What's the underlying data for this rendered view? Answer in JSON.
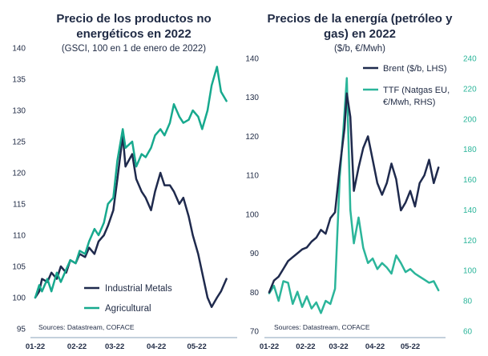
{
  "chart_data": [
    {
      "type": "line",
      "title": "Precio de los productos no energéticos en 2022",
      "subtitle": "(GSCI, 100 en 1 de enero de 2022)",
      "x_ticks": [
        "01-22",
        "02-22",
        "03-22",
        "04-22",
        "05-22"
      ],
      "ylim": [
        95,
        140
      ],
      "y_ticks": [
        95,
        100,
        105,
        110,
        115,
        120,
        125,
        130,
        135,
        140
      ],
      "legend_placement": "bottom-right",
      "source": "Sources: Datastream, COFACE",
      "colors": {
        "Industrial Metals": "#1f2a4d",
        "Agricultural": "#17a98e"
      },
      "series": [
        {
          "name": "Industrial Metals",
          "x": [
            "2022-01-01",
            "2022-01-04",
            "2022-01-06",
            "2022-01-10",
            "2022-01-13",
            "2022-01-17",
            "2022-01-20",
            "2022-01-24",
            "2022-01-27",
            "2022-01-31",
            "2022-02-03",
            "2022-02-07",
            "2022-02-10",
            "2022-02-14",
            "2022-02-17",
            "2022-02-21",
            "2022-02-24",
            "2022-02-28",
            "2022-03-03",
            "2022-03-07",
            "2022-03-09",
            "2022-03-14",
            "2022-03-17",
            "2022-03-21",
            "2022-03-24",
            "2022-03-28",
            "2022-03-31",
            "2022-04-04",
            "2022-04-07",
            "2022-04-11",
            "2022-04-14",
            "2022-04-18",
            "2022-04-21",
            "2022-04-25",
            "2022-04-28",
            "2022-05-02",
            "2022-05-05",
            "2022-05-09",
            "2022-05-12",
            "2022-05-16",
            "2022-05-19",
            "2022-05-23"
          ],
          "values": [
            100,
            101,
            103,
            102.5,
            104,
            103,
            105,
            104,
            106,
            105.5,
            107,
            106.5,
            108,
            107,
            109,
            110,
            111.5,
            114,
            119,
            126,
            121,
            123,
            119,
            117,
            116,
            114,
            117,
            120,
            118,
            118,
            117,
            115,
            116,
            113,
            110,
            107,
            104,
            100,
            98.5,
            100,
            101,
            103
          ]
        },
        {
          "name": "Agricultural",
          "x": [
            "2022-01-01",
            "2022-01-04",
            "2022-01-06",
            "2022-01-10",
            "2022-01-13",
            "2022-01-17",
            "2022-01-20",
            "2022-01-24",
            "2022-01-27",
            "2022-01-31",
            "2022-02-03",
            "2022-02-07",
            "2022-02-10",
            "2022-02-14",
            "2022-02-17",
            "2022-02-21",
            "2022-02-24",
            "2022-02-28",
            "2022-03-03",
            "2022-03-07",
            "2022-03-09",
            "2022-03-14",
            "2022-03-17",
            "2022-03-21",
            "2022-03-24",
            "2022-03-28",
            "2022-03-31",
            "2022-04-04",
            "2022-04-07",
            "2022-04-11",
            "2022-04-14",
            "2022-04-18",
            "2022-04-21",
            "2022-04-25",
            "2022-04-28",
            "2022-05-02",
            "2022-05-05",
            "2022-05-09",
            "2022-05-12",
            "2022-05-16",
            "2022-05-19",
            "2022-05-23"
          ],
          "values": [
            100,
            102,
            101,
            103,
            101,
            104,
            102.5,
            104.5,
            106,
            105.5,
            107.5,
            107,
            109,
            111,
            110,
            112,
            115,
            116,
            122,
            127,
            124,
            125,
            121,
            123,
            122.5,
            124,
            126,
            127,
            126,
            128,
            131,
            129,
            128,
            128.5,
            130,
            129,
            127,
            130,
            134,
            137,
            133,
            131.5
          ]
        }
      ]
    },
    {
      "type": "line",
      "title": "Precios de la energía (petróleo y gas) en 2022",
      "subtitle": "($/b, €/Mwh)",
      "x_ticks": [
        "01-22",
        "02-22",
        "03-22",
        "04-22",
        "05-22"
      ],
      "ylim_left": [
        70,
        140
      ],
      "y_ticks_left": [
        70,
        80,
        90,
        100,
        110,
        120,
        130,
        140
      ],
      "ylim_right": [
        60,
        240
      ],
      "y_ticks_right": [
        60,
        80,
        100,
        120,
        140,
        160,
        180,
        200,
        220,
        240
      ],
      "legend_placement": "top-right",
      "source": "Sources: Datastream, COFACE",
      "colors": {
        "Brent ($/b, LHS)": "#1f2a4d",
        "TTF (Natgas EU, €/Mwh, RHS)": "#2bb59a"
      },
      "series": [
        {
          "name": "Brent ($/b, LHS)",
          "axis": "left",
          "x": [
            "2022-01-01",
            "2022-01-05",
            "2022-01-09",
            "2022-01-13",
            "2022-01-17",
            "2022-01-21",
            "2022-01-25",
            "2022-01-29",
            "2022-02-02",
            "2022-02-06",
            "2022-02-10",
            "2022-02-14",
            "2022-02-18",
            "2022-02-22",
            "2022-02-26",
            "2022-03-02",
            "2022-03-06",
            "2022-03-08",
            "2022-03-11",
            "2022-03-14",
            "2022-03-18",
            "2022-03-22",
            "2022-03-26",
            "2022-03-30",
            "2022-04-03",
            "2022-04-07",
            "2022-04-11",
            "2022-04-15",
            "2022-04-19",
            "2022-04-23",
            "2022-04-27",
            "2022-05-01",
            "2022-05-05",
            "2022-05-09",
            "2022-05-13",
            "2022-05-17",
            "2022-05-21",
            "2022-05-25"
          ],
          "values": [
            80,
            83,
            84,
            86,
            88,
            89,
            90,
            91,
            91.5,
            93,
            94,
            96,
            95,
            99,
            100.5,
            112,
            122,
            131,
            125,
            106,
            112,
            117,
            120,
            114,
            108,
            105,
            108,
            113,
            109,
            101,
            103,
            106,
            102,
            108,
            110,
            114,
            108,
            112
          ]
        },
        {
          "name": "TTF (Natgas EU, €/Mwh, RHS)",
          "axis": "right",
          "x": [
            "2022-01-01",
            "2022-01-05",
            "2022-01-09",
            "2022-01-13",
            "2022-01-17",
            "2022-01-21",
            "2022-01-25",
            "2022-01-29",
            "2022-02-02",
            "2022-02-06",
            "2022-02-10",
            "2022-02-14",
            "2022-02-18",
            "2022-02-22",
            "2022-02-26",
            "2022-03-02",
            "2022-03-05",
            "2022-03-08",
            "2022-03-11",
            "2022-03-14",
            "2022-03-18",
            "2022-03-22",
            "2022-03-26",
            "2022-03-30",
            "2022-04-03",
            "2022-04-07",
            "2022-04-11",
            "2022-04-15",
            "2022-04-19",
            "2022-04-23",
            "2022-04-27",
            "2022-05-01",
            "2022-05-05",
            "2022-05-09",
            "2022-05-13",
            "2022-05-17",
            "2022-05-21",
            "2022-05-25"
          ],
          "values": [
            85,
            90,
            80,
            93,
            92,
            78,
            86,
            76,
            83,
            75,
            79,
            72,
            80,
            78,
            88,
            162,
            192,
            227,
            140,
            118,
            135,
            115,
            105,
            108,
            101,
            105,
            102,
            98,
            110,
            105,
            99,
            101,
            98,
            96,
            94,
            92,
            93,
            87
          ]
        }
      ]
    }
  ]
}
